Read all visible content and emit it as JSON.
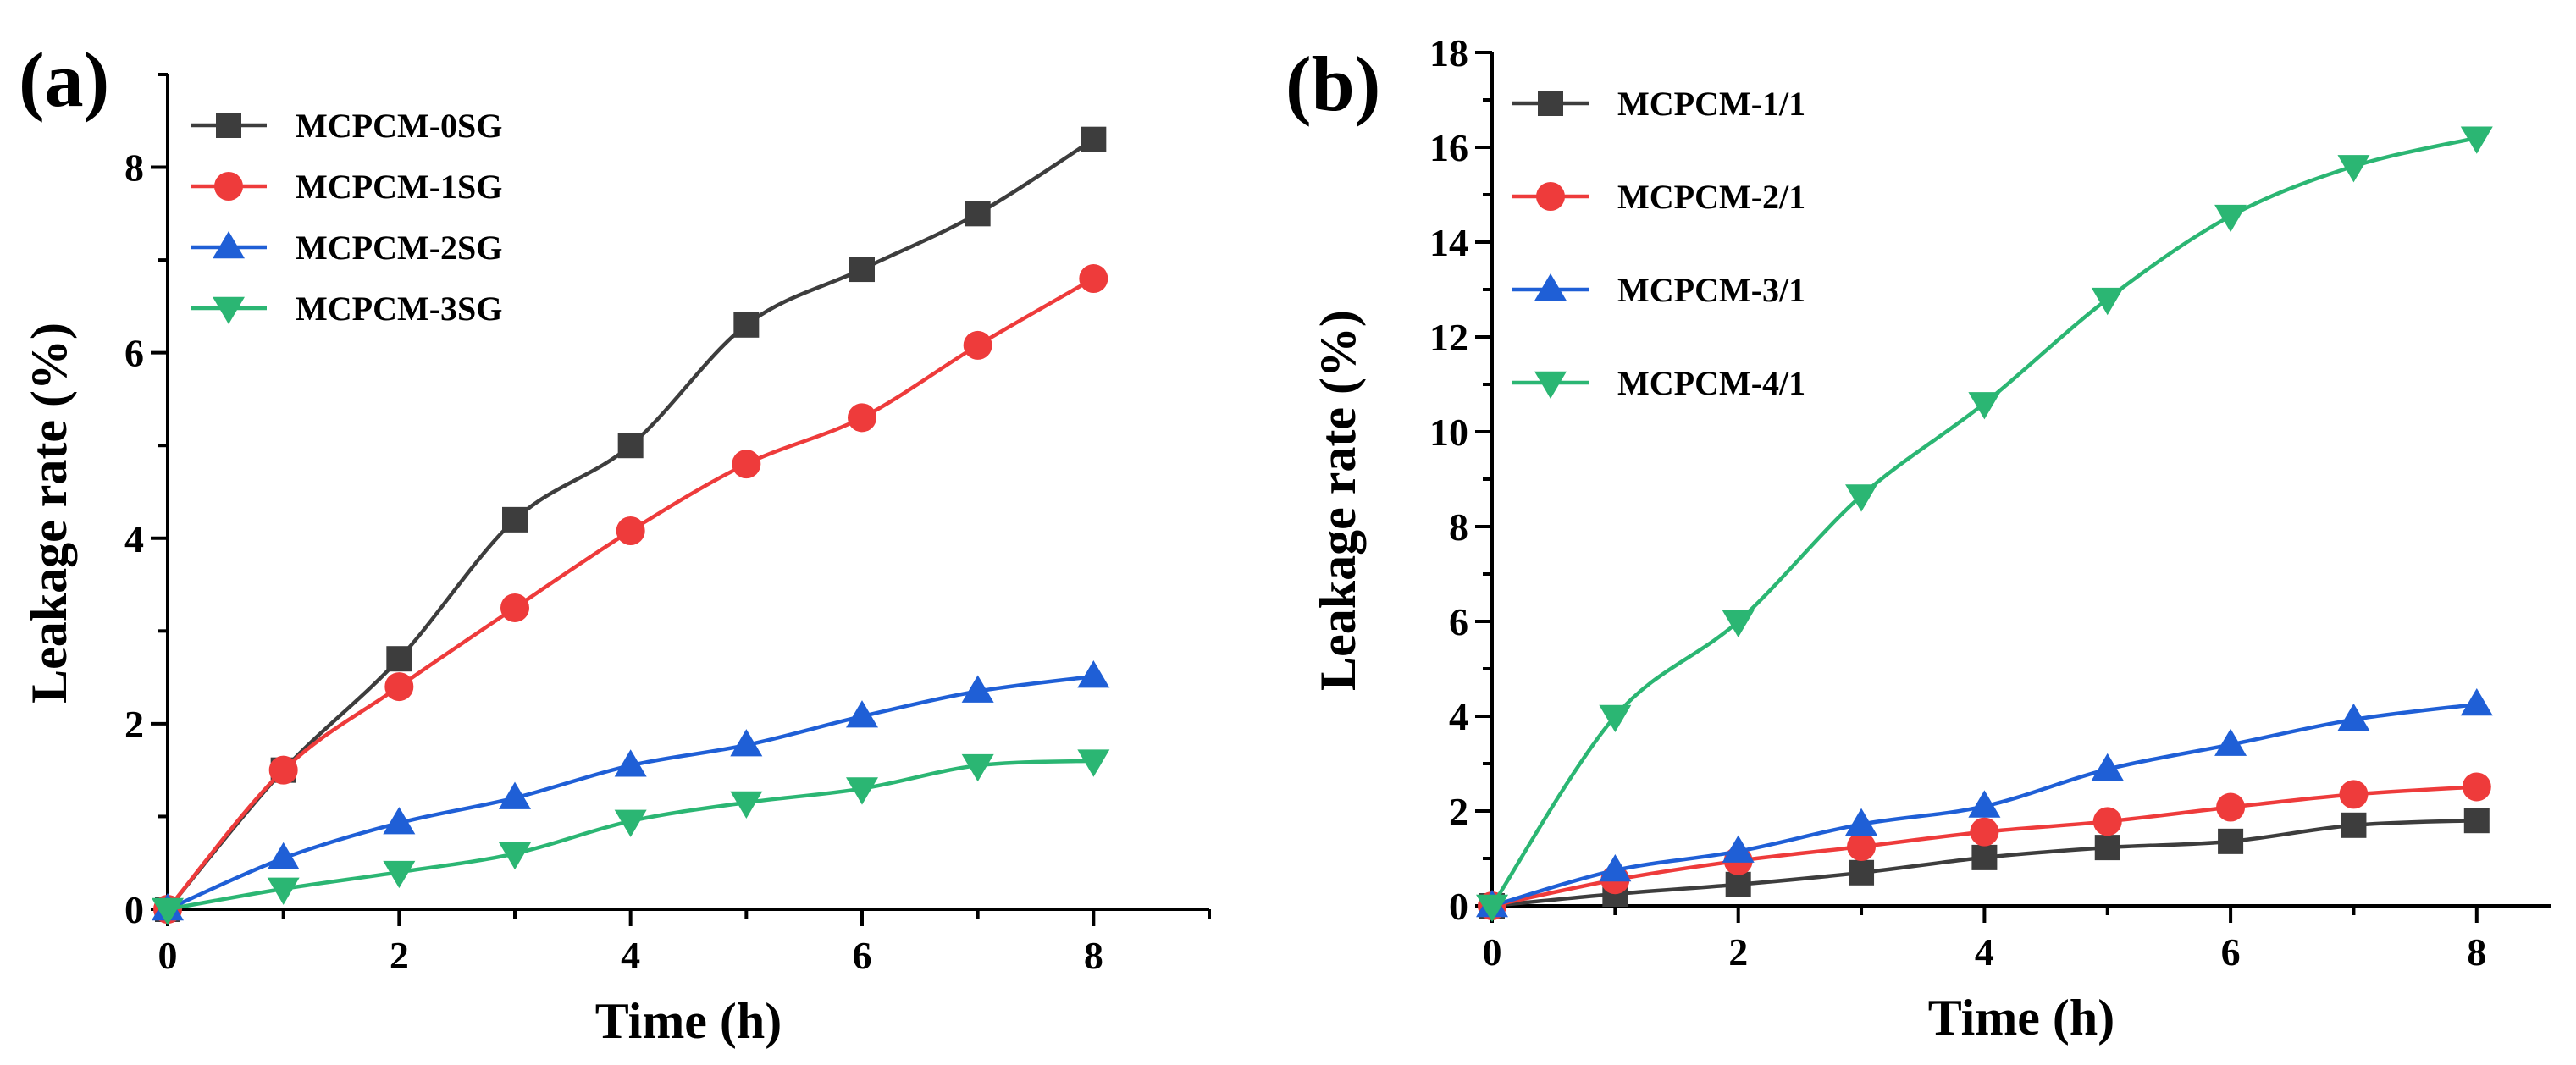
{
  "chart_data": [
    {
      "type": "line",
      "panel_label": "(a)",
      "xlabel": "Time (h)",
      "ylabel": "Leakage rate (%)",
      "xlim": [
        0,
        9
      ],
      "ylim": [
        0,
        9
      ],
      "xticks": [
        0,
        2,
        4,
        6,
        8
      ],
      "yticks": [
        0,
        2,
        4,
        6,
        8
      ],
      "legend_position": "top-left",
      "x": [
        0,
        1,
        2,
        3,
        4,
        5,
        6,
        7,
        8
      ],
      "series": [
        {
          "name": "MCPCM-0SG",
          "color": "#3d3d3d",
          "marker": "square",
          "values": [
            0,
            1.5,
            2.7,
            4.2,
            5.0,
            6.3,
            6.9,
            7.5,
            8.3
          ]
        },
        {
          "name": "MCPCM-1SG",
          "color": "#ee3b3b",
          "marker": "circle",
          "values": [
            0,
            1.5,
            2.4,
            3.25,
            4.08,
            4.8,
            5.3,
            6.08,
            6.8
          ]
        },
        {
          "name": "MCPCM-2SG",
          "color": "#1f5fd6",
          "marker": "triangle-up",
          "values": [
            0,
            0.55,
            0.93,
            1.2,
            1.55,
            1.77,
            2.08,
            2.35,
            2.51
          ]
        },
        {
          "name": "MCPCM-3SG",
          "color": "#2bb673",
          "marker": "triangle-down",
          "values": [
            0,
            0.22,
            0.4,
            0.6,
            0.95,
            1.15,
            1.3,
            1.55,
            1.6
          ]
        }
      ]
    },
    {
      "type": "line",
      "panel_label": "(b)",
      "xlabel": "Time (h)",
      "ylabel": "Leakage rate (%)",
      "xlim": [
        0,
        8.6
      ],
      "ylim": [
        0,
        18
      ],
      "xticks": [
        0,
        2,
        4,
        6,
        8
      ],
      "yticks": [
        0,
        2,
        4,
        6,
        8,
        10,
        12,
        14,
        16,
        18
      ],
      "legend_position": "top-left",
      "x": [
        0,
        1,
        2,
        3,
        4,
        5,
        6,
        7,
        8
      ],
      "series": [
        {
          "name": "MCPCM-1/1",
          "color": "#3d3d3d",
          "marker": "square",
          "values": [
            0,
            0.25,
            0.45,
            0.7,
            1.02,
            1.23,
            1.36,
            1.7,
            1.8
          ]
        },
        {
          "name": "MCPCM-2/1",
          "color": "#ee3b3b",
          "marker": "circle",
          "values": [
            0,
            0.55,
            0.95,
            1.25,
            1.56,
            1.78,
            2.08,
            2.35,
            2.51
          ]
        },
        {
          "name": "MCPCM-3/1",
          "color": "#1f5fd6",
          "marker": "triangle-up",
          "values": [
            0,
            0.75,
            1.15,
            1.72,
            2.1,
            2.88,
            3.4,
            3.93,
            4.25
          ]
        },
        {
          "name": "MCPCM-4/1",
          "color": "#2bb673",
          "marker": "triangle-down",
          "values": [
            0,
            4.0,
            6.0,
            8.65,
            10.6,
            12.8,
            14.55,
            15.6,
            16.2
          ]
        }
      ]
    }
  ]
}
